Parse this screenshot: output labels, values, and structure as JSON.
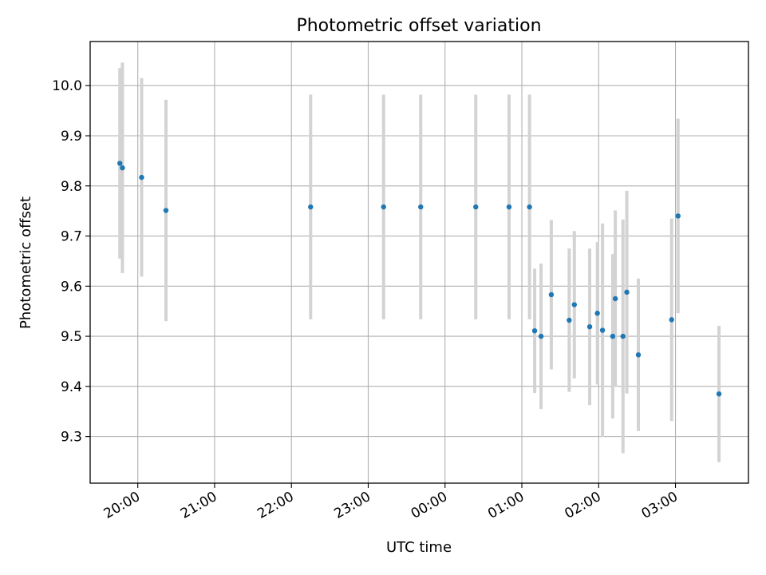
{
  "chart_data": {
    "type": "scatter",
    "title": "Photometric offset variation",
    "xlabel": "UTC time",
    "ylabel": "Photometric offset",
    "x_ticks": [
      "20:00",
      "21:00",
      "22:00",
      "23:00",
      "00:00",
      "01:00",
      "02:00",
      "03:00"
    ],
    "x_tick_hours": [
      20,
      21,
      22,
      23,
      24,
      25,
      26,
      27
    ],
    "y_ticks": [
      "9.3",
      "9.4",
      "9.5",
      "9.6",
      "9.7",
      "9.8",
      "9.9",
      "10.0"
    ],
    "xlim_hours": [
      19.38,
      27.95
    ],
    "ylim": [
      9.207,
      10.088
    ],
    "grid": true,
    "errorbar_color": "#d3d3d3",
    "point_color": "#1f77b4",
    "series": [
      {
        "points": [
          {
            "x": "19:46",
            "y": 9.845,
            "err": 0.19
          },
          {
            "x": "19:48",
            "y": 9.836,
            "err": 0.21
          },
          {
            "x": "20:03",
            "y": 9.817,
            "err": 0.198
          },
          {
            "x": "20:22",
            "y": 9.751,
            "err": 0.221
          },
          {
            "x": "22:15",
            "y": 9.758,
            "err": 0.224
          },
          {
            "x": "23:12",
            "y": 9.758,
            "err": 0.224
          },
          {
            "x": "23:41",
            "y": 9.758,
            "err": 0.224
          },
          {
            "x": "00:24",
            "y": 9.758,
            "err": 0.224
          },
          {
            "x": "00:50",
            "y": 9.758,
            "err": 0.224
          },
          {
            "x": "01:06",
            "y": 9.758,
            "err": 0.224
          },
          {
            "x": "01:10",
            "y": 9.511,
            "err": 0.124
          },
          {
            "x": "01:15",
            "y": 9.5,
            "err": 0.145
          },
          {
            "x": "01:23",
            "y": 9.583,
            "err": 0.149
          },
          {
            "x": "01:37",
            "y": 9.532,
            "err": 0.143
          },
          {
            "x": "01:41",
            "y": 9.563,
            "err": 0.147
          },
          {
            "x": "01:53",
            "y": 9.519,
            "err": 0.156
          },
          {
            "x": "01:59",
            "y": 9.546,
            "err": 0.142
          },
          {
            "x": "02:03",
            "y": 9.512,
            "err": 0.213
          },
          {
            "x": "02:11",
            "y": 9.5,
            "err": 0.164
          },
          {
            "x": "02:13",
            "y": 9.575,
            "err": 0.176
          },
          {
            "x": "02:19",
            "y": 9.5,
            "err": 0.233
          },
          {
            "x": "02:22",
            "y": 9.588,
            "err": 0.202
          },
          {
            "x": "02:31",
            "y": 9.463,
            "err": 0.152
          },
          {
            "x": "02:57",
            "y": 9.533,
            "err": 0.202
          },
          {
            "x": "03:02",
            "y": 9.74,
            "err": 0.194
          },
          {
            "x": "03:34",
            "y": 9.385,
            "err": 0.136
          }
        ]
      }
    ]
  }
}
